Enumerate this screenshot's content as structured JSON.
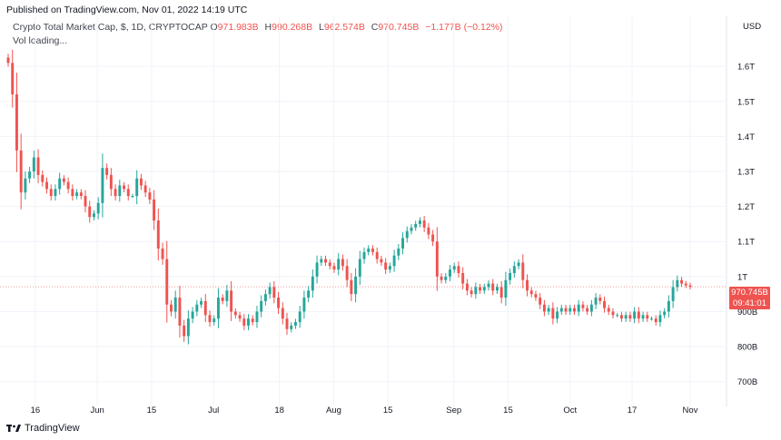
{
  "header": {
    "published": "Published on TradingView.com, Nov 01, 2022 14:19 UTC",
    "symbol": "Crypto Total Market Cap, $, 1D, CRYPTOCAP",
    "o_label": "O",
    "o_value": "971.983B",
    "h_label": "H",
    "h_value": "990.268B",
    "l_label": "L",
    "l_value": "962.574B",
    "c_label": "C",
    "c_value": "970.745B",
    "change": "−1.177B (−0.12%)",
    "vol": "Vol loading..."
  },
  "price_tag": {
    "price": "970.745B",
    "countdown": "09:41:01"
  },
  "footer": {
    "brand": "TradingView"
  },
  "colors": {
    "up": "#26a69a",
    "down": "#ef5350",
    "grid": "#f0f3fa",
    "axis_text": "#131722"
  },
  "chart_data": {
    "type": "candlestick",
    "title": "Crypto Total Market Cap, $, 1D, CRYPTOCAP",
    "currency": "USD",
    "y_unit": "B",
    "y_ticks": [
      {
        "value": 700,
        "label": "700B"
      },
      {
        "value": 800,
        "label": "800B"
      },
      {
        "value": 900,
        "label": "900B"
      },
      {
        "value": 1000,
        "label": "1T"
      },
      {
        "value": 1100,
        "label": "1.1T"
      },
      {
        "value": 1200,
        "label": "1.2T"
      },
      {
        "value": 1300,
        "label": "1.3T"
      },
      {
        "value": 1400,
        "label": "1.4T"
      },
      {
        "value": 1500,
        "label": "1.5T"
      },
      {
        "value": 1600,
        "label": "1.6T"
      }
    ],
    "ylim": [
      650,
      1660
    ],
    "x_range": [
      "2022-05-09",
      "2022-11-01"
    ],
    "x_ticks": [
      {
        "date": "2022-05-16",
        "label": "16"
      },
      {
        "date": "2022-06-01",
        "label": "Jun"
      },
      {
        "date": "2022-06-15",
        "label": "15"
      },
      {
        "date": "2022-07-01",
        "label": "Jul"
      },
      {
        "date": "2022-07-18",
        "label": "18"
      },
      {
        "date": "2022-08-01",
        "label": "Aug"
      },
      {
        "date": "2022-08-15",
        "label": "15"
      },
      {
        "date": "2022-09-01",
        "label": "Sep"
      },
      {
        "date": "2022-09-15",
        "label": "15"
      },
      {
        "date": "2022-10-01",
        "label": "Oct"
      },
      {
        "date": "2022-10-17",
        "label": "17"
      },
      {
        "date": "2022-11-01",
        "label": "Nov"
      }
    ],
    "last_price": 970.745,
    "closes": [
      1610,
      1520,
      1360,
      1240,
      1280,
      1300,
      1340,
      1290,
      1270,
      1250,
      1230,
      1250,
      1280,
      1270,
      1250,
      1230,
      1240,
      1230,
      1200,
      1170,
      1180,
      1210,
      1310,
      1290,
      1250,
      1230,
      1260,
      1250,
      1230,
      1230,
      1280,
      1260,
      1240,
      1220,
      1160,
      1080,
      1050,
      920,
      900,
      940,
      860,
      830,
      880,
      900,
      920,
      930,
      890,
      870,
      880,
      940,
      930,
      960,
      900,
      890,
      880,
      860,
      880,
      870,
      900,
      930,
      950,
      970,
      940,
      910,
      880,
      850,
      860,
      870,
      900,
      940,
      960,
      1000,
      1040,
      1050,
      1040,
      1030,
      1020,
      1050,
      1030,
      990,
      950,
      1000,
      1050,
      1070,
      1080,
      1070,
      1050,
      1040,
      1020,
      1030,
      1060,
      1080,
      1110,
      1130,
      1140,
      1150,
      1160,
      1140,
      1120,
      1100,
      1000,
      990,
      1000,
      1020,
      1030,
      1010,
      980,
      960,
      950,
      970,
      960,
      970,
      980,
      960,
      970,
      940,
      990,
      1010,
      1030,
      1040,
      990,
      960,
      950,
      940,
      920,
      900,
      910,
      880,
      900,
      910,
      900,
      910,
      900,
      920,
      910,
      900,
      920,
      940,
      930,
      910,
      900,
      890,
      890,
      880,
      890,
      880,
      900,
      880,
      890,
      880,
      880,
      870,
      890,
      900,
      930,
      970,
      990,
      980,
      975,
      970.745
    ]
  }
}
